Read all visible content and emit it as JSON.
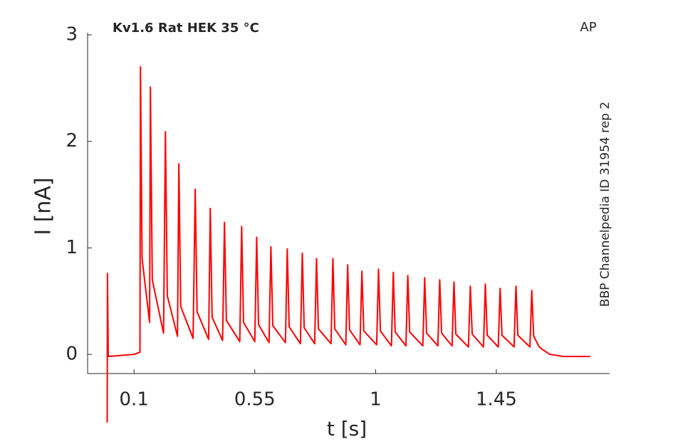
{
  "chart_data": {
    "type": "line",
    "title": "Kv1.6  Rat  HEK  35 °C",
    "annotation": "AP",
    "side_label": "BBP Channelpedia ID 31954 rep 2",
    "x_label": "t [s]",
    "y_label": "I [nA]",
    "color": "#ff0000",
    "grid": false,
    "xlim": [
      -0.073,
      1.872
    ],
    "ylim": [
      -0.18,
      3.02
    ],
    "xticks": [
      0.1,
      0.55,
      1,
      1.45
    ],
    "yticks": [
      0,
      1,
      2,
      3
    ],
    "x": [
      0,
      0.001,
      0.004,
      0.1,
      0.122,
      0.124,
      0.13,
      0.158,
      0.161,
      0.168,
      0.21,
      0.217,
      0.224,
      0.262,
      0.267,
      0.274,
      0.32,
      0.328,
      0.335,
      0.378,
      0.384,
      0.391,
      0.43,
      0.437,
      0.444,
      0.494,
      0.501,
      0.508,
      0.55,
      0.557,
      0.564,
      0.603,
      0.61,
      0.617,
      0.664,
      0.671,
      0.678,
      0.72,
      0.727,
      0.734,
      0.773,
      0.78,
      0.787,
      0.834,
      0.841,
      0.848,
      0.889,
      0.896,
      0.903,
      0.942,
      0.949,
      0.956,
      1.004,
      1.011,
      1.018,
      1.059,
      1.066,
      1.073,
      1.113,
      1.12,
      1.127,
      1.176,
      1.183,
      1.19,
      1.232,
      1.239,
      1.246,
      1.285,
      1.292,
      1.299,
      1.346,
      1.353,
      1.36,
      1.402,
      1.409,
      1.416,
      1.457,
      1.464,
      1.471,
      1.516,
      1.523,
      1.53,
      1.575,
      1.582,
      1.589,
      1.61,
      1.625,
      1.65,
      1.7,
      1.8
    ],
    "values": [
      -0.64,
      0.76,
      -0.02,
      0.0,
      0.02,
      2.7,
      0.9,
      0.3,
      2.51,
      0.7,
      0.2,
      2.09,
      0.55,
      0.17,
      1.79,
      0.45,
      0.15,
      1.55,
      0.4,
      0.14,
      1.37,
      0.35,
      0.13,
      1.24,
      0.32,
      0.12,
      1.2,
      0.3,
      0.12,
      1.1,
      0.28,
      0.11,
      1.01,
      0.27,
      0.11,
      0.99,
      0.26,
      0.1,
      0.95,
      0.25,
      0.1,
      0.9,
      0.24,
      0.1,
      0.9,
      0.24,
      0.09,
      0.84,
      0.23,
      0.09,
      0.78,
      0.22,
      0.09,
      0.8,
      0.22,
      0.08,
      0.77,
      0.21,
      0.08,
      0.74,
      0.21,
      0.08,
      0.72,
      0.2,
      0.08,
      0.7,
      0.2,
      0.08,
      0.68,
      0.19,
      0.07,
      0.64,
      0.19,
      0.07,
      0.66,
      0.18,
      0.07,
      0.62,
      0.18,
      0.07,
      0.64,
      0.18,
      0.07,
      0.6,
      0.17,
      0.07,
      0.04,
      0.0,
      -0.02,
      -0.02
    ]
  }
}
